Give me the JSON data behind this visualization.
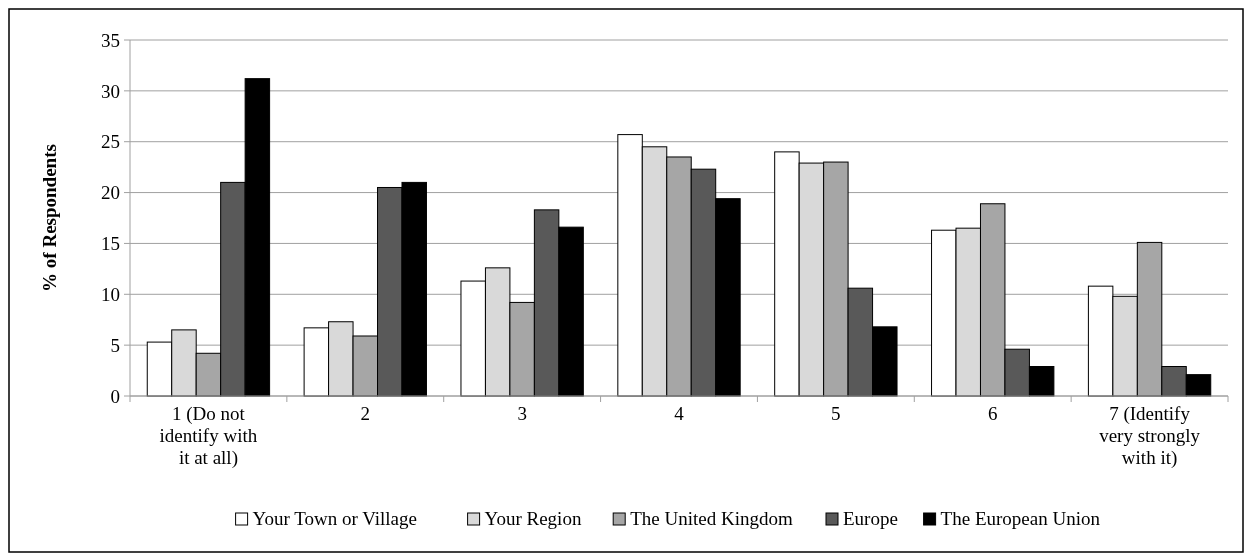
{
  "chart_data": {
    "type": "bar",
    "ylabel": "% of Respondents",
    "categories": [
      "1 (Do not identify with it at all)",
      "2",
      "3",
      "4",
      "5",
      "6",
      "7 (Identify very strongly with it)"
    ],
    "series": [
      {
        "name": "Your Town or Village",
        "color": "#ffffff",
        "values": [
          5.3,
          6.7,
          11.3,
          25.7,
          24.0,
          16.3,
          10.8
        ]
      },
      {
        "name": "Your Region",
        "color": "#d9d9d9",
        "values": [
          6.5,
          7.3,
          12.6,
          24.5,
          22.9,
          16.5,
          9.8
        ]
      },
      {
        "name": "The United Kingdom",
        "color": "#a6a6a6",
        "values": [
          4.2,
          5.9,
          9.2,
          23.5,
          23.0,
          18.9,
          15.1
        ]
      },
      {
        "name": "Europe",
        "color": "#595959",
        "values": [
          21.0,
          20.5,
          18.3,
          22.3,
          10.6,
          4.6,
          2.9
        ]
      },
      {
        "name": "The European Union",
        "color": "#000000",
        "values": [
          31.2,
          21.0,
          16.6,
          19.4,
          6.8,
          2.9,
          2.1
        ]
      }
    ],
    "ylim": [
      0,
      35
    ],
    "yticks": [
      0,
      5,
      10,
      15,
      20,
      25,
      30,
      35
    ],
    "grid": "y",
    "legend": "bottom"
  }
}
